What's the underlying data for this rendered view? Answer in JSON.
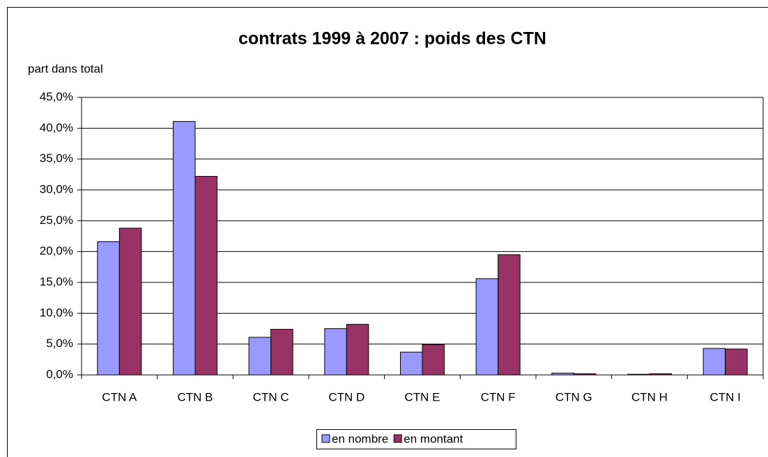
{
  "chart_data": {
    "type": "bar",
    "title": "contrats 1999 à 2007 : poids des CTN",
    "y_label": "part dans total",
    "categories": [
      "CTN A",
      "CTN B",
      "CTN C",
      "CTN D",
      "CTN E",
      "CTN F",
      "CTN G",
      "CTN H",
      "CTN I"
    ],
    "series": [
      {
        "name": "en nombre",
        "color": "#9999ff",
        "values": [
          21.6,
          41.1,
          6.1,
          7.5,
          3.7,
          15.6,
          0.3,
          0.1,
          4.3
        ]
      },
      {
        "name": "en montant",
        "color": "#993366",
        "values": [
          23.8,
          32.2,
          7.4,
          8.2,
          4.9,
          19.5,
          0.2,
          0.2,
          4.2
        ]
      }
    ],
    "ylim": [
      0,
      45
    ],
    "yticks": [
      {
        "value": 0,
        "label": "0,0%"
      },
      {
        "value": 5,
        "label": "5,0%"
      },
      {
        "value": 10,
        "label": "10,0%"
      },
      {
        "value": 15,
        "label": "15,0%"
      },
      {
        "value": 20,
        "label": "20,0%"
      },
      {
        "value": 25,
        "label": "25,0%"
      },
      {
        "value": 30,
        "label": "30,0%"
      },
      {
        "value": 35,
        "label": "35,0%"
      },
      {
        "value": 40,
        "label": "40,0%"
      },
      {
        "value": 45,
        "label": "45,0%"
      }
    ],
    "grid": true,
    "legend": "bottom"
  }
}
